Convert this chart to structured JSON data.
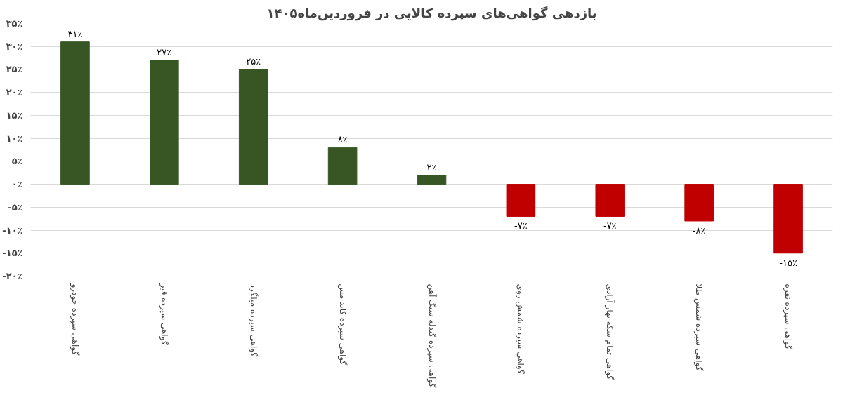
{
  "chart_data": {
    "type": "bar",
    "title": "بازدهی گواهی‌های سپرده کالایی در فروردین‌ماه۱۴۰۵",
    "categories": [
      "گواهی سپرده خودرو",
      "گواهی سپرده قیر",
      "گواهی سپرده میلگرد",
      "گواهی سپرده کاتد مس",
      "گواهی سپرده گندله سنگ آهن",
      "گواهی سپرده شمش روی",
      "گواهی تمام سکه بهار آزادی",
      "گواهی سپرده شمش طلا",
      "گواهی سپرده نقره"
    ],
    "values": [
      31,
      27,
      25,
      8,
      2,
      -7,
      -7,
      -8,
      -15
    ],
    "colors": [
      "#375623",
      "#375623",
      "#375623",
      "#375623",
      "#375623",
      "#c00000",
      "#c00000",
      "#c00000",
      "#c00000"
    ],
    "value_labels": [
      "۳۱٪",
      "۲۷٪",
      "۲۵٪",
      "۸٪",
      "۲٪",
      "-۷٪",
      "-۷٪",
      "-۸٪",
      "-۱۵٪"
    ],
    "ylim": [
      -20,
      35
    ],
    "yticks": [
      {
        "value": -20,
        "label": "-۲۰٪"
      },
      {
        "value": -15,
        "label": "-۱۵٪"
      },
      {
        "value": -10,
        "label": "-۱۰٪"
      },
      {
        "value": -5,
        "label": "-۵٪"
      },
      {
        "value": 0,
        "label": "۰٪"
      },
      {
        "value": 5,
        "label": "۵٪"
      },
      {
        "value": 10,
        "label": "۱۰٪"
      },
      {
        "value": 15,
        "label": "۱۵٪"
      },
      {
        "value": 20,
        "label": "۲۰٪"
      },
      {
        "value": 25,
        "label": "۲۵٪"
      },
      {
        "value": 30,
        "label": "۳۰٪"
      },
      {
        "value": 35,
        "label": "۳۵٪"
      }
    ],
    "grid": "y"
  }
}
